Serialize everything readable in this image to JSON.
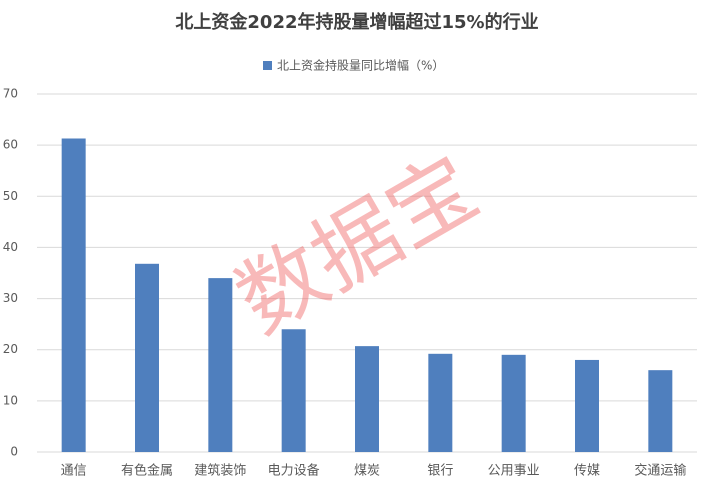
{
  "chart_data": {
    "type": "bar",
    "title": "北上资金2022年持股量增幅超过15%的行业",
    "legend": "北上资金持股量同比增幅（%）",
    "categories": [
      "通信",
      "有色金属",
      "建筑装饰",
      "电力设备",
      "煤炭",
      "银行",
      "公用事业",
      "传媒",
      "交通运输"
    ],
    "values": [
      61.3,
      36.8,
      34.0,
      24.0,
      20.7,
      19.2,
      19.0,
      18.0,
      16.0
    ],
    "color": "#4f7fbe",
    "ylim": [
      0,
      70
    ],
    "yticks": [
      0,
      10,
      20,
      30,
      40,
      50,
      60,
      70
    ],
    "grid": true,
    "watermark": "数据宝"
  }
}
